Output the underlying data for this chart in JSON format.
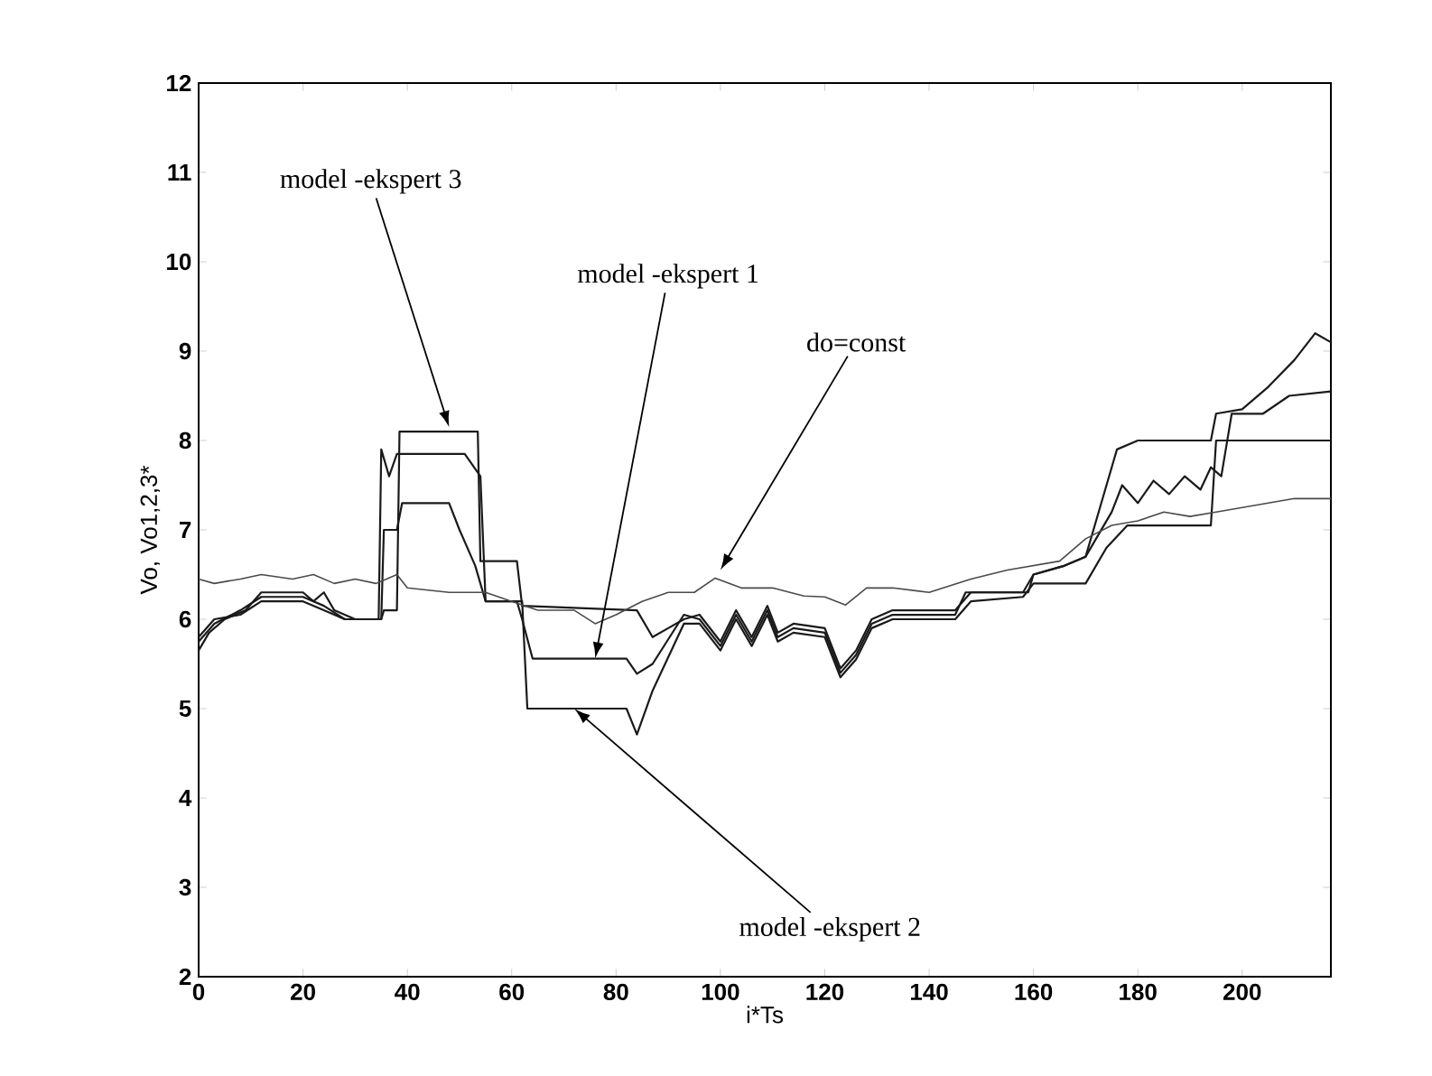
{
  "chart_data": {
    "type": "line",
    "xlabel": "i*Ts",
    "ylabel": "Vo, Vo1,2,3*",
    "xlim": [
      0,
      217
    ],
    "ylim": [
      2,
      12
    ],
    "xticks": [
      0,
      20,
      40,
      60,
      80,
      100,
      120,
      140,
      160,
      180,
      200
    ],
    "yticks": [
      2,
      3,
      4,
      5,
      6,
      7,
      8,
      9,
      10,
      11,
      12
    ],
    "grid": false,
    "legend": false,
    "marker": "none",
    "line_style": "solid",
    "series": [
      {
        "color": "#1a1a1a",
        "x": [
          0,
          3,
          8,
          12,
          20,
          24,
          28,
          35,
          35.5,
          38,
          38.5,
          53.5,
          54,
          61,
          62,
          84,
          87,
          90,
          93,
          96,
          100,
          103,
          106,
          109,
          111,
          114,
          120,
          123,
          126,
          129,
          133,
          145,
          148,
          158,
          160,
          166,
          170,
          173,
          176,
          180,
          194,
          195,
          200,
          205,
          210,
          214,
          217
        ],
        "values": [
          5.75,
          5.95,
          6.1,
          6.25,
          6.25,
          6.15,
          6.0,
          6.0,
          6.1,
          6.1,
          8.1,
          8.1,
          6.65,
          6.65,
          6.15,
          6.1,
          5.8,
          5.9,
          6.0,
          6.05,
          5.75,
          6.1,
          5.8,
          6.15,
          5.85,
          5.95,
          5.9,
          5.45,
          5.65,
          6.0,
          6.1,
          6.1,
          6.3,
          6.3,
          6.5,
          6.6,
          6.7,
          7.3,
          7.9,
          8.0,
          8.0,
          8.3,
          8.35,
          8.6,
          8.9,
          9.2,
          9.1
        ]
      },
      {
        "color": "#1a1a1a",
        "x": [
          0,
          2,
          5,
          9,
          12,
          20,
          22,
          24,
          26,
          28,
          30,
          34.5,
          35,
          36.5,
          38,
          51,
          54,
          55,
          61,
          62,
          64,
          82,
          84,
          87,
          93,
          96,
          100,
          103,
          106,
          109,
          111,
          114,
          120,
          123,
          126,
          129,
          133,
          145,
          147,
          159,
          160,
          166,
          170,
          175,
          177,
          180,
          183,
          186,
          189,
          192,
          194,
          196,
          198,
          204,
          209,
          217
        ],
        "values": [
          5.65,
          5.85,
          6.0,
          6.1,
          6.3,
          6.3,
          6.2,
          6.3,
          6.1,
          6.05,
          6.0,
          6.0,
          7.9,
          7.6,
          7.85,
          7.85,
          7.6,
          6.2,
          6.2,
          6.0,
          5.56,
          5.56,
          5.39,
          5.5,
          6.05,
          6.0,
          5.7,
          6.05,
          5.75,
          6.1,
          5.8,
          5.9,
          5.85,
          5.4,
          5.6,
          5.95,
          6.05,
          6.05,
          6.3,
          6.3,
          6.5,
          6.6,
          6.7,
          7.2,
          7.5,
          7.3,
          7.55,
          7.4,
          7.6,
          7.45,
          7.7,
          7.6,
          8.3,
          8.3,
          8.5,
          8.55
        ]
      },
      {
        "color": "#1a1a1a",
        "x": [
          0,
          3,
          8,
          12,
          20,
          24,
          28,
          35,
          35.5,
          38,
          39,
          48,
          50,
          53,
          55,
          62,
          63,
          82,
          84,
          87,
          93,
          96,
          100,
          103,
          106,
          109,
          111,
          114,
          120,
          123,
          126,
          129,
          133,
          145,
          148,
          158,
          160,
          170,
          174,
          178,
          194,
          195,
          217
        ],
        "values": [
          5.8,
          6.0,
          6.05,
          6.2,
          6.2,
          6.1,
          6.0,
          6.0,
          7.0,
          7.0,
          7.3,
          7.3,
          7.0,
          6.6,
          6.2,
          6.2,
          5.0,
          5.0,
          4.71,
          5.2,
          5.95,
          5.95,
          5.65,
          6.0,
          5.7,
          6.05,
          5.75,
          5.85,
          5.8,
          5.35,
          5.55,
          5.9,
          6.0,
          6.0,
          6.2,
          6.25,
          6.4,
          6.4,
          6.8,
          7.05,
          7.05,
          8.0,
          8.0
        ]
      },
      {
        "color": "#4a4a4a",
        "x": [
          0,
          3,
          8,
          12,
          18,
          22,
          26,
          30,
          34,
          36,
          38,
          40,
          48,
          55,
          60,
          65,
          72,
          76,
          80,
          85,
          90,
          95,
          99,
          104,
          110,
          116,
          120,
          124,
          128,
          133,
          140,
          148,
          155,
          160,
          165,
          170,
          175,
          180,
          185,
          190,
          195,
          200,
          205,
          210,
          217
        ],
        "values": [
          6.45,
          6.4,
          6.45,
          6.5,
          6.45,
          6.5,
          6.4,
          6.45,
          6.4,
          6.45,
          6.5,
          6.35,
          6.3,
          6.3,
          6.2,
          6.1,
          6.1,
          5.95,
          6.05,
          6.2,
          6.3,
          6.3,
          6.46,
          6.35,
          6.35,
          6.26,
          6.25,
          6.16,
          6.35,
          6.35,
          6.3,
          6.45,
          6.55,
          6.6,
          6.65,
          6.9,
          7.05,
          7.1,
          7.2,
          7.15,
          7.2,
          7.25,
          7.3,
          7.35,
          7.35
        ]
      }
    ],
    "annotations": [
      {
        "text": "model -ekspert 3",
        "x": 48,
        "y": 8.15
      },
      {
        "text": "model -ekspert 1",
        "x": 76,
        "y": 5.56
      },
      {
        "text": "do=const",
        "x": 100,
        "y": 6.55
      },
      {
        "text": "model -ekspert 2",
        "x": 72,
        "y": 5.0
      }
    ]
  }
}
